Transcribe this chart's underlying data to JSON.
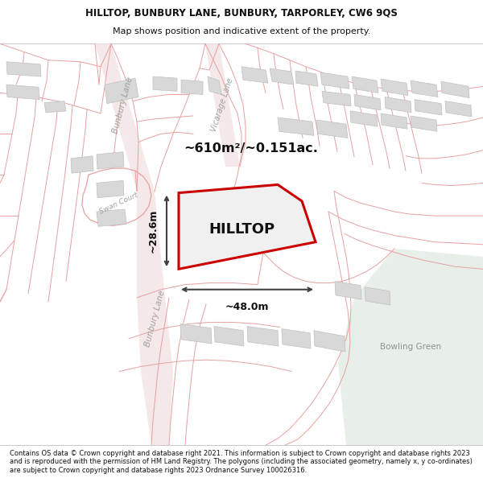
{
  "title_line1": "HILLTOP, BUNBURY LANE, BUNBURY, TARPORLEY, CW6 9QS",
  "title_line2": "Map shows position and indicative extent of the property.",
  "footer_text": "Contains OS data © Crown copyright and database right 2021. This information is subject to Crown copyright and database rights 2023 and is reproduced with the permission of HM Land Registry. The polygons (including the associated geometry, namely x, y co-ordinates) are subject to Crown copyright and database rights 2023 Ordnance Survey 100026316.",
  "area_label": "~610m²/~0.151ac.",
  "property_label": "HILLTOP",
  "dim_width_label": "~48.0m",
  "dim_height_label": "~28.6m",
  "bowling_green_label": "Bowling Green",
  "bunbury_lane_label1": "Bunbury Lane",
  "bunbury_lane_label2": "Bunbury Lane",
  "vicarage_lane_label": "Vicarage Lane",
  "swan_court_label": "Swan Court",
  "bg_color": "#ffffff",
  "map_bg_color": "#ffffff",
  "road_outline_color": "#e8a0a0",
  "road_fill_color": "#f5e8e8",
  "building_fill": "#d8d8d8",
  "building_edge": "#c0c0c0",
  "property_fill": "#f0f0f0",
  "property_edge": "#cc0000",
  "bowling_fill": "#e8efe8",
  "dim_color": "#404040",
  "label_color": "#a0a0a0",
  "header_sep_color": "#cccccc",
  "footer_sep_color": "#cccccc"
}
